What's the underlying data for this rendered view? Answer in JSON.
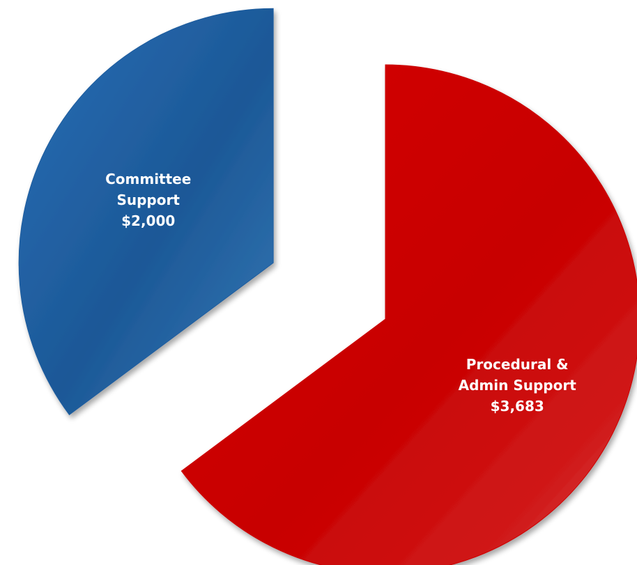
{
  "chart_data": {
    "type": "pie",
    "exploded": true,
    "slices": [
      {
        "label_lines": [
          "Committee",
          "Support",
          "$2,000"
        ],
        "category": "Committee Support",
        "value": 2000,
        "color": "#1f5c9e"
      },
      {
        "label_lines": [
          "Procedural &",
          "Admin Support",
          "$3,683"
        ],
        "category": "Procedural & Admin Support",
        "value": 3683,
        "color": "#cc0000"
      }
    ]
  }
}
